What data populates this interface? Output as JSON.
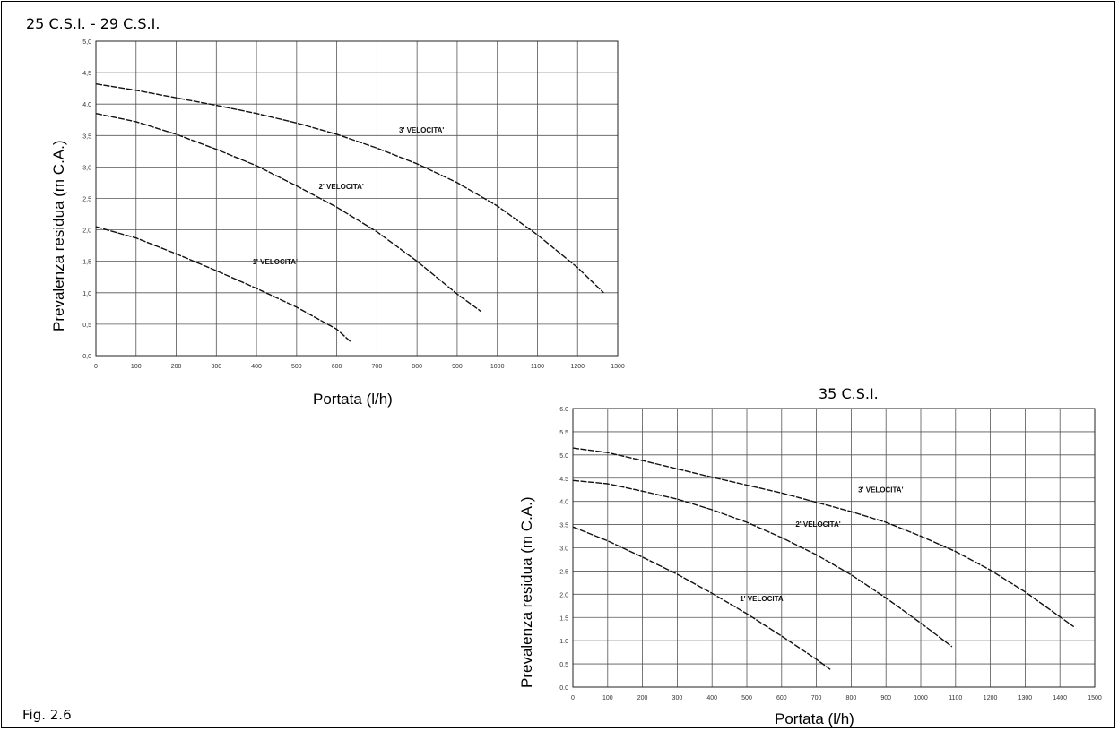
{
  "figure_caption": "Fig. 2.6",
  "chart_data": [
    {
      "type": "line",
      "title": "25 C.S.I.  - 29 C.S.I.",
      "xlabel": "Portata (l/h)",
      "ylabel": "Prevalenza residua (m C.A.)",
      "xlim": [
        0,
        1300
      ],
      "ylim": [
        0,
        5
      ],
      "grid": true,
      "x_ticks": [
        0,
        100,
        200,
        300,
        400,
        500,
        600,
        700,
        800,
        900,
        1000,
        1100,
        1200,
        1300
      ],
      "x_tick_labels": [
        "0",
        "100",
        "200",
        "300",
        "400",
        "500",
        "600",
        "700",
        "800",
        "900",
        "1000",
        "1100",
        "1200",
        "1300"
      ],
      "y_ticks": [
        0,
        0.5,
        1,
        1.5,
        2,
        2.5,
        3,
        3.5,
        4,
        4.5,
        5
      ],
      "y_tick_labels": [
        "0,0",
        "0,5",
        "1,0",
        "1,5",
        "2,0",
        "2,5",
        "3,0",
        "3,5",
        "4,0",
        "4,5",
        "5,0"
      ],
      "series": [
        {
          "name": "1' VELOCITA'",
          "label_at": [
            390,
            1.45
          ],
          "x": [
            0,
            100,
            200,
            300,
            400,
            500,
            600,
            635
          ],
          "y": [
            2.05,
            1.87,
            1.62,
            1.35,
            1.07,
            0.77,
            0.42,
            0.22
          ]
        },
        {
          "name": "2' VELOCITA'",
          "label_at": [
            555,
            2.65
          ],
          "x": [
            0,
            100,
            200,
            300,
            400,
            500,
            600,
            700,
            800,
            900,
            960
          ],
          "y": [
            3.85,
            3.72,
            3.52,
            3.28,
            3.02,
            2.7,
            2.36,
            1.97,
            1.5,
            0.98,
            0.7
          ]
        },
        {
          "name": "3' VELOCITA'",
          "label_at": [
            755,
            3.55
          ],
          "x": [
            0,
            100,
            200,
            300,
            400,
            500,
            600,
            700,
            800,
            900,
            1000,
            1100,
            1200,
            1265
          ],
          "y": [
            4.32,
            4.22,
            4.1,
            3.98,
            3.85,
            3.7,
            3.52,
            3.3,
            3.05,
            2.75,
            2.38,
            1.92,
            1.4,
            1.0
          ]
        }
      ]
    },
    {
      "type": "line",
      "title": "35 C.S.I.",
      "xlabel": "Portata (l/h)",
      "ylabel": "Prevalenza residua (m C.A.)",
      "xlim": [
        0,
        1500
      ],
      "ylim": [
        0,
        6
      ],
      "grid": true,
      "x_ticks": [
        0,
        100,
        200,
        300,
        400,
        500,
        600,
        700,
        800,
        900,
        1000,
        1100,
        1200,
        1300,
        1400,
        1500
      ],
      "x_tick_labels": [
        "0",
        "100",
        "200",
        "300",
        "400",
        "500",
        "600",
        "700",
        "800",
        "900",
        "1000",
        "1100",
        "1200",
        "1300",
        "1400",
        "1500"
      ],
      "y_ticks": [
        0,
        0.5,
        1,
        1.5,
        2,
        2.5,
        3,
        3.5,
        4,
        4.5,
        5,
        5.5,
        6
      ],
      "y_tick_labels": [
        "0.0",
        "0.5",
        "1.0",
        "1.5",
        "2.0",
        "2.5",
        "3.0",
        "3.5",
        "4.0",
        "4.5",
        "5.0",
        "5.5",
        "6.0"
      ],
      "series": [
        {
          "name": "1' VELOCITA'",
          "label_at": [
            480,
            1.85
          ],
          "x": [
            0,
            100,
            200,
            300,
            400,
            500,
            600,
            700,
            740
          ],
          "y": [
            3.45,
            3.15,
            2.8,
            2.43,
            2.02,
            1.58,
            1.1,
            0.6,
            0.38
          ]
        },
        {
          "name": "2' VELOCITA'",
          "label_at": [
            640,
            3.45
          ],
          "x": [
            0,
            100,
            200,
            300,
            400,
            500,
            600,
            700,
            800,
            900,
            1000,
            1090
          ],
          "y": [
            4.45,
            4.38,
            4.22,
            4.05,
            3.82,
            3.55,
            3.22,
            2.85,
            2.42,
            1.92,
            1.38,
            0.87
          ]
        },
        {
          "name": "3' VELOCITA'",
          "label_at": [
            820,
            4.2
          ],
          "x": [
            0,
            100,
            200,
            300,
            400,
            500,
            600,
            700,
            800,
            900,
            1000,
            1100,
            1200,
            1300,
            1440
          ],
          "y": [
            5.15,
            5.05,
            4.88,
            4.7,
            4.52,
            4.35,
            4.18,
            3.98,
            3.78,
            3.55,
            3.25,
            2.92,
            2.52,
            2.05,
            1.3
          ]
        }
      ]
    }
  ]
}
